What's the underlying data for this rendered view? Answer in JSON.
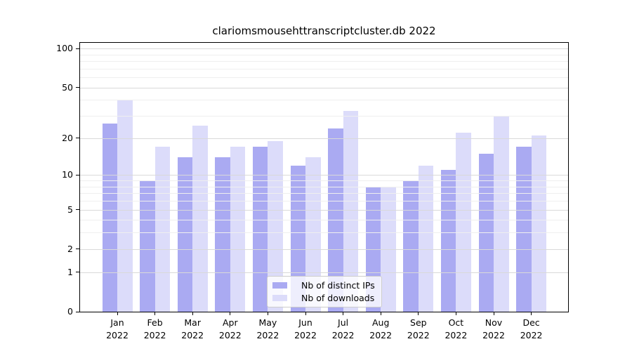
{
  "title": "clariomsmousehttranscriptcluster.db 2022",
  "chart_data": {
    "type": "bar",
    "title": "clariomsmousehttranscriptcluster.db 2022",
    "categories": [
      "Jan",
      "Feb",
      "Mar",
      "Apr",
      "May",
      "Jun",
      "Jul",
      "Aug",
      "Sep",
      "Oct",
      "Nov",
      "Dec"
    ],
    "year_label": "2022",
    "series": [
      {
        "name": "Nb of distinct IPs",
        "color": "#aaaaf2",
        "values": [
          26,
          9,
          14,
          14,
          17,
          12,
          24,
          8,
          9,
          11,
          15,
          17
        ]
      },
      {
        "name": "Nb of downloads",
        "color": "#dcdcfa",
        "values": [
          40,
          17,
          25,
          17,
          19,
          14,
          33,
          8,
          12,
          22,
          30,
          21
        ]
      }
    ],
    "y_axis": {
      "scale": "log10(1+x)",
      "major_ticks": [
        100,
        50,
        20,
        10,
        5,
        2,
        1,
        0
      ],
      "minor_ticks": [
        3,
        4,
        6,
        7,
        8,
        9,
        30,
        40,
        60,
        70,
        80,
        90
      ]
    },
    "grid": true,
    "legend_position": "bottom-center",
    "colors": {
      "major_grid": "#d9d9d9",
      "minor_grid": "#efefef",
      "axis": "#000000",
      "text": "#000000"
    }
  }
}
